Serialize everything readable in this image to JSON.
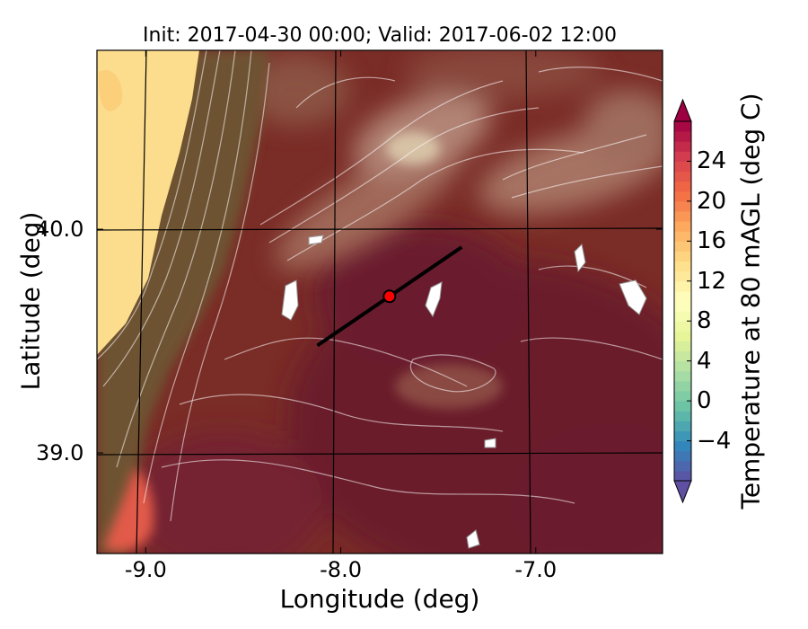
{
  "chart_data": {
    "type": "heatmap",
    "title": "Init: 2017-04-30 00:00; Valid: 2017-06-02 12:00",
    "xlabel": "Longitude (deg)",
    "ylabel": "Latitude (deg)",
    "x_ticks": [
      -9.0,
      -8.0,
      -7.0
    ],
    "x_tick_labels": [
      "-9.0",
      "-8.0",
      "-7.0"
    ],
    "y_ticks": [
      39.0,
      40.0
    ],
    "y_tick_labels": [
      "39.0",
      "40.0"
    ],
    "xlim": [
      -9.25,
      -6.35
    ],
    "ylim": [
      38.55,
      40.8
    ],
    "colorbar": {
      "label": "Temperature at 80 mAGL (deg C)",
      "ticks": [
        -4,
        0,
        4,
        8,
        12,
        16,
        20,
        24
      ],
      "tick_labels": [
        "−4",
        "0",
        "4",
        "8",
        "12",
        "16",
        "20",
        "24"
      ],
      "range": [
        -8,
        28
      ],
      "extend": "both",
      "colormap": "Spectral_r",
      "low_color": "#5e4fa2",
      "high_color": "#9e0142"
    },
    "line_marker": {
      "from": [
        -8.12,
        39.48
      ],
      "to": [
        -7.38,
        39.92
      ],
      "point": [
        -7.75,
        39.7
      ],
      "point_color": "#ff0000",
      "line_color": "#000000"
    },
    "contours": "terrain height contours (white/grey)",
    "grid": true
  },
  "colors": {
    "ocean": "#fcdd8d",
    "warm_land": "#7a2c26",
    "hot_land": "#6b1a2c",
    "coast_land": "#6e5230",
    "hills": "#b08072"
  }
}
